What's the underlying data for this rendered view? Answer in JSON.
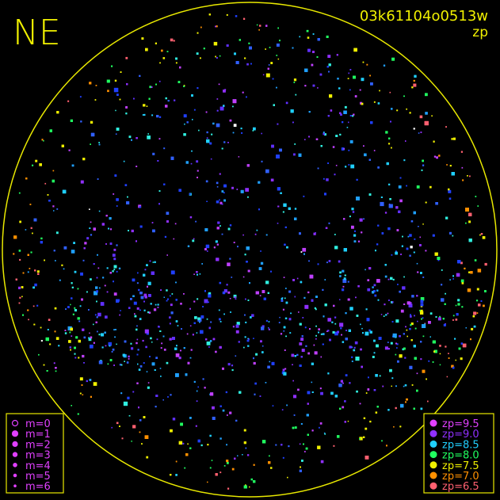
{
  "corner_label": "NE",
  "frame_id": "03k61104o0513w",
  "mode": "zp",
  "magnitude_legend": [
    "m=0",
    "m=1",
    "m=2",
    "m=3",
    "m=4",
    "m=5",
    "m=6"
  ],
  "zp_legend": [
    {
      "label": "zp=9.5",
      "color": "#e040ff"
    },
    {
      "label": "zp=9.0",
      "color": "#9030ff"
    },
    {
      "label": "zp=8.5",
      "color": "#20d0ff"
    },
    {
      "label": "zp=8.0",
      "color": "#20ff60"
    },
    {
      "label": "zp=7.5",
      "color": "#f0f000"
    },
    {
      "label": "zp=7.0",
      "color": "#ff9000"
    },
    {
      "label": "zp=6.5",
      "color": "#ff6070"
    }
  ]
}
